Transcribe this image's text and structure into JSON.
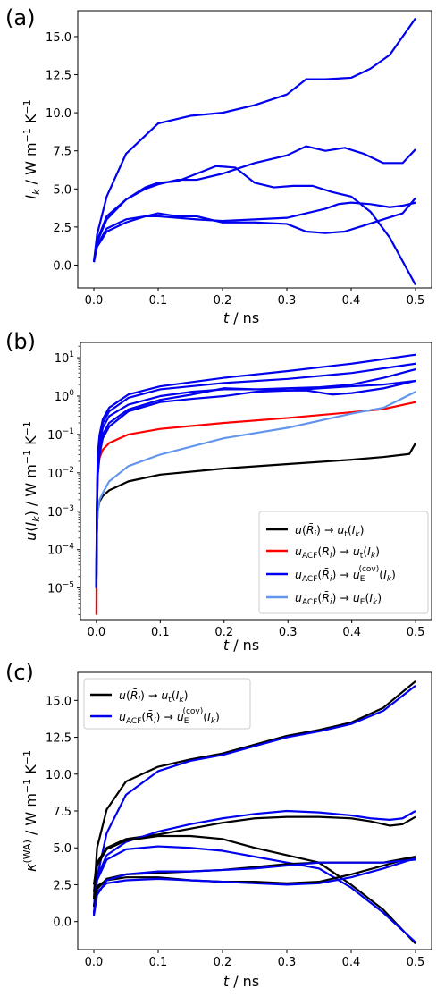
{
  "figure": {
    "panels": [
      {
        "letter": "(a)"
      },
      {
        "letter": "(b)"
      },
      {
        "letter": "(c)"
      }
    ]
  },
  "chart_data": [
    {
      "type": "line",
      "panel": "(a)",
      "xlabel": "t / ns",
      "ylabel": "I_k / W m^-1 K^-1",
      "xlim": [
        -0.025,
        0.525
      ],
      "ylim": [
        -1.5,
        16.7
      ],
      "xticks": [
        0.0,
        0.1,
        0.2,
        0.3,
        0.4,
        0.5
      ],
      "yticks": [
        0.0,
        2.5,
        5.0,
        7.5,
        10.0,
        12.5,
        15.0
      ],
      "xtick_labels": [
        "0.0",
        "0.1",
        "0.2",
        "0.3",
        "0.4",
        "0.5"
      ],
      "ytick_labels": [
        "0.0",
        "2.5",
        "5.0",
        "7.5",
        "10.0",
        "12.5",
        "15.0"
      ],
      "grid": false,
      "series": [
        {
          "color": "#0000ee",
          "x": [
            0,
            0.005,
            0.02,
            0.05,
            0.1,
            0.15,
            0.2,
            0.25,
            0.3,
            0.33,
            0.36,
            0.4,
            0.43,
            0.46,
            0.5
          ],
          "y": [
            0.2,
            2.0,
            4.5,
            7.3,
            9.3,
            9.8,
            10.0,
            10.5,
            11.2,
            12.2,
            12.2,
            12.3,
            12.9,
            13.8,
            16.2
          ]
        },
        {
          "color": "#0000ee",
          "x": [
            0,
            0.005,
            0.02,
            0.05,
            0.08,
            0.1,
            0.13,
            0.16,
            0.19,
            0.22,
            0.25,
            0.28,
            0.31,
            0.34,
            0.37,
            0.4,
            0.43,
            0.46,
            0.5
          ],
          "y": [
            0.2,
            1.6,
            3.2,
            4.3,
            5.1,
            5.4,
            5.5,
            6.0,
            6.5,
            6.4,
            5.4,
            5.1,
            5.2,
            5.2,
            4.8,
            4.5,
            3.5,
            1.8,
            -1.3
          ]
        },
        {
          "color": "#0000ee",
          "x": [
            0,
            0.005,
            0.02,
            0.05,
            0.08,
            0.1,
            0.13,
            0.16,
            0.2,
            0.25,
            0.3,
            0.33,
            0.36,
            0.39,
            0.42,
            0.45,
            0.48,
            0.5
          ],
          "y": [
            0.2,
            1.5,
            3.0,
            4.3,
            5.0,
            5.3,
            5.6,
            5.6,
            6.0,
            6.7,
            7.2,
            7.8,
            7.5,
            7.7,
            7.3,
            6.7,
            6.7,
            7.6
          ]
        },
        {
          "color": "#0000ee",
          "x": [
            0,
            0.005,
            0.02,
            0.05,
            0.08,
            0.1,
            0.13,
            0.16,
            0.2,
            0.25,
            0.3,
            0.33,
            0.36,
            0.39,
            0.42,
            0.45,
            0.48,
            0.5
          ],
          "y": [
            0.2,
            1.2,
            2.2,
            2.8,
            3.2,
            3.4,
            3.2,
            3.2,
            2.8,
            2.8,
            2.7,
            2.2,
            2.1,
            2.2,
            2.6,
            3.0,
            3.4,
            4.4
          ]
        },
        {
          "color": "#0000ee",
          "x": [
            0,
            0.005,
            0.02,
            0.05,
            0.08,
            0.1,
            0.13,
            0.16,
            0.2,
            0.25,
            0.3,
            0.33,
            0.36,
            0.38,
            0.4,
            0.43,
            0.46,
            0.48,
            0.5
          ],
          "y": [
            0.2,
            1.3,
            2.4,
            3.0,
            3.2,
            3.2,
            3.1,
            3.0,
            2.9,
            3.0,
            3.1,
            3.4,
            3.7,
            4.0,
            4.1,
            4.0,
            3.8,
            3.9,
            4.1
          ]
        }
      ]
    },
    {
      "type": "line",
      "panel": "(b)",
      "xlabel": "t / ns",
      "ylabel": "u(I_k) / W m^-1 K^-1",
      "yscale": "log",
      "xlim": [
        -0.025,
        0.525
      ],
      "ylim": [
        1.5e-06,
        25
      ],
      "xticks": [
        0.0,
        0.1,
        0.2,
        0.3,
        0.4,
        0.5
      ],
      "yticks": [
        1e-05,
        0.0001,
        0.001,
        0.01,
        0.1,
        1,
        10
      ],
      "xtick_labels": [
        "0.0",
        "0.1",
        "0.2",
        "0.3",
        "0.4",
        "0.5"
      ],
      "ytick_labels": [
        {
          "base": "10",
          "exp": "−5"
        },
        {
          "base": "10",
          "exp": "−4"
        },
        {
          "base": "10",
          "exp": "−3"
        },
        {
          "base": "10",
          "exp": "−2"
        },
        {
          "base": "10",
          "exp": "−1"
        },
        {
          "base": "10",
          "exp": "0"
        },
        {
          "base": "10",
          "exp": "1"
        }
      ],
      "grid": false,
      "legend": {
        "position": "lower-right",
        "entries": [
          {
            "color": "#000000",
            "text": "u(R̄ᵢ) → uₜ(Iₖ)"
          },
          {
            "color": "#ff0000",
            "text": "u_ACF(R̄ᵢ) → uₜ(Iₖ)"
          },
          {
            "color": "#0000ee",
            "text": "u_ACF(R̄ᵢ) → u_E^(cov)(Iₖ)"
          },
          {
            "color": "#6495ed",
            "text": "u_ACF(R̄ᵢ) → u_E(Iₖ)"
          }
        ]
      },
      "series": [
        {
          "color": "#000000",
          "x": [
            0.0,
            0.0005,
            0.002,
            0.005,
            0.01,
            0.02,
            0.05,
            0.1,
            0.2,
            0.3,
            0.4,
            0.45,
            0.49,
            0.5
          ],
          "y": [
            1e-05,
            0.0002,
            0.001,
            0.0018,
            0.0025,
            0.0035,
            0.006,
            0.009,
            0.013,
            0.017,
            0.022,
            0.026,
            0.031,
            0.06
          ]
        },
        {
          "color": "#ff0000",
          "x": [
            0.0,
            0.0005,
            0.002,
            0.005,
            0.01,
            0.02,
            0.05,
            0.1,
            0.2,
            0.3,
            0.4,
            0.45,
            0.5
          ],
          "y": [
            2e-06,
            0.0003,
            0.01,
            0.025,
            0.04,
            0.06,
            0.1,
            0.14,
            0.2,
            0.27,
            0.38,
            0.46,
            0.7
          ]
        },
        {
          "color": "#6495ed",
          "x": [
            0.0,
            0.0005,
            0.002,
            0.005,
            0.01,
            0.02,
            0.05,
            0.1,
            0.2,
            0.3,
            0.4,
            0.45,
            0.5
          ],
          "y": [
            1e-05,
            0.0002,
            0.001,
            0.002,
            0.003,
            0.006,
            0.015,
            0.03,
            0.08,
            0.15,
            0.35,
            0.5,
            1.3
          ]
        },
        {
          "color": "#0000ee",
          "x": [
            0.0,
            0.0005,
            0.002,
            0.005,
            0.01,
            0.02,
            0.05,
            0.1,
            0.2,
            0.3,
            0.4,
            0.5
          ],
          "y": [
            1e-05,
            0.001,
            0.03,
            0.1,
            0.25,
            0.5,
            1.1,
            1.8,
            3.0,
            4.5,
            7.0,
            12.0
          ]
        },
        {
          "color": "#0000ee",
          "x": [
            0.0,
            0.0005,
            0.002,
            0.005,
            0.01,
            0.02,
            0.05,
            0.1,
            0.2,
            0.3,
            0.4,
            0.5
          ],
          "y": [
            1e-05,
            0.0008,
            0.02,
            0.08,
            0.2,
            0.4,
            0.9,
            1.5,
            2.2,
            2.8,
            4.0,
            7.0
          ]
        },
        {
          "color": "#0000ee",
          "x": [
            0.0,
            0.0005,
            0.002,
            0.005,
            0.01,
            0.02,
            0.05,
            0.1,
            0.15,
            0.2,
            0.25,
            0.3,
            0.35,
            0.4,
            0.45,
            0.5
          ],
          "y": [
            1e-05,
            0.0006,
            0.015,
            0.06,
            0.15,
            0.3,
            0.6,
            1.0,
            1.3,
            1.5,
            1.5,
            1.6,
            1.7,
            2.0,
            3.0,
            5.0
          ]
        },
        {
          "color": "#0000ee",
          "x": [
            0.0,
            0.0005,
            0.002,
            0.005,
            0.01,
            0.02,
            0.05,
            0.1,
            0.15,
            0.2,
            0.25,
            0.3,
            0.33,
            0.37,
            0.4,
            0.45,
            0.5
          ],
          "y": [
            1e-05,
            0.0005,
            0.01,
            0.04,
            0.1,
            0.2,
            0.45,
            0.8,
            1.1,
            1.6,
            1.5,
            1.4,
            1.4,
            1.1,
            1.2,
            1.6,
            2.5
          ]
        },
        {
          "color": "#0000ee",
          "x": [
            0.0,
            0.0005,
            0.002,
            0.005,
            0.01,
            0.02,
            0.05,
            0.1,
            0.15,
            0.2,
            0.25,
            0.3,
            0.35,
            0.4,
            0.45,
            0.5
          ],
          "y": [
            1e-05,
            0.0004,
            0.008,
            0.03,
            0.08,
            0.16,
            0.4,
            0.7,
            0.85,
            1.0,
            1.3,
            1.4,
            1.6,
            1.8,
            2.0,
            2.5
          ]
        }
      ]
    },
    {
      "type": "line",
      "panel": "(c)",
      "xlabel": "t / ns",
      "ylabel": "κ^(WA) / W m^-1 K^-1",
      "xlim": [
        -0.025,
        0.525
      ],
      "ylim": [
        -1.9,
        16.9
      ],
      "xticks": [
        0.0,
        0.1,
        0.2,
        0.3,
        0.4,
        0.5
      ],
      "yticks": [
        0.0,
        2.5,
        5.0,
        7.5,
        10.0,
        12.5,
        15.0
      ],
      "xtick_labels": [
        "0.0",
        "0.1",
        "0.2",
        "0.3",
        "0.4",
        "0.5"
      ],
      "ytick_labels": [
        "0.0",
        "2.5",
        "5.0",
        "7.5",
        "10.0",
        "12.5",
        "15.0"
      ],
      "grid": false,
      "legend": {
        "position": "top-left",
        "entries": [
          {
            "color": "#000000",
            "text": "u(R̄ᵢ) → uₜ(Iₖ)"
          },
          {
            "color": "#0000ee",
            "text": "u_ACF(R̄ᵢ) → u_E^(cov)(Iₖ)"
          }
        ]
      },
      "series": [
        {
          "color": "#000000",
          "x": [
            0.0,
            0.005,
            0.02,
            0.05,
            0.1,
            0.15,
            0.2,
            0.25,
            0.3,
            0.35,
            0.4,
            0.45,
            0.5
          ],
          "y": [
            1.5,
            5.0,
            7.6,
            9.5,
            10.5,
            11.0,
            11.4,
            12.0,
            12.6,
            13.0,
            13.5,
            14.5,
            16.3
          ]
        },
        {
          "color": "#0000ee",
          "x": [
            0.0,
            0.005,
            0.02,
            0.05,
            0.1,
            0.15,
            0.2,
            0.25,
            0.3,
            0.35,
            0.4,
            0.45,
            0.5
          ],
          "y": [
            0.5,
            3.0,
            6.0,
            8.6,
            10.2,
            10.9,
            11.3,
            11.9,
            12.5,
            12.9,
            13.4,
            14.3,
            16.0
          ]
        },
        {
          "color": "#000000",
          "x": [
            0.0,
            0.005,
            0.02,
            0.05,
            0.1,
            0.15,
            0.2,
            0.25,
            0.3,
            0.35,
            0.4,
            0.43,
            0.46,
            0.48,
            0.5
          ],
          "y": [
            2.5,
            4.0,
            5.0,
            5.6,
            5.9,
            6.3,
            6.7,
            7.0,
            7.1,
            7.1,
            7.0,
            6.8,
            6.5,
            6.6,
            7.1
          ]
        },
        {
          "color": "#0000ee",
          "x": [
            0.0,
            0.005,
            0.02,
            0.05,
            0.1,
            0.15,
            0.2,
            0.25,
            0.3,
            0.35,
            0.4,
            0.43,
            0.46,
            0.48,
            0.5
          ],
          "y": [
            1.0,
            3.0,
            4.5,
            5.4,
            6.1,
            6.6,
            7.0,
            7.3,
            7.5,
            7.4,
            7.2,
            7.0,
            6.9,
            7.0,
            7.5
          ]
        },
        {
          "color": "#000000",
          "x": [
            0.0,
            0.005,
            0.02,
            0.05,
            0.1,
            0.15,
            0.2,
            0.25,
            0.3,
            0.35,
            0.4,
            0.45,
            0.5
          ],
          "y": [
            2.0,
            3.8,
            4.9,
            5.5,
            5.8,
            5.8,
            5.6,
            5.0,
            4.5,
            4.0,
            2.5,
            0.8,
            -1.5
          ]
        },
        {
          "color": "#0000ee",
          "x": [
            0.0,
            0.005,
            0.02,
            0.05,
            0.1,
            0.15,
            0.2,
            0.25,
            0.3,
            0.35,
            0.4,
            0.45,
            0.5
          ],
          "y": [
            1.0,
            2.8,
            4.2,
            4.9,
            5.1,
            5.0,
            4.8,
            4.4,
            4.0,
            3.6,
            2.3,
            0.6,
            -1.4
          ]
        },
        {
          "color": "#000000",
          "x": [
            0.0,
            0.005,
            0.02,
            0.05,
            0.1,
            0.15,
            0.2,
            0.25,
            0.3,
            0.35,
            0.4,
            0.45,
            0.5
          ],
          "y": [
            1.5,
            2.4,
            2.8,
            3.0,
            3.0,
            2.8,
            2.7,
            2.7,
            2.6,
            2.7,
            3.2,
            3.8,
            4.4
          ]
        },
        {
          "color": "#0000ee",
          "x": [
            0.0,
            0.005,
            0.02,
            0.05,
            0.1,
            0.15,
            0.2,
            0.25,
            0.3,
            0.35,
            0.4,
            0.45,
            0.5
          ],
          "y": [
            0.6,
            2.0,
            2.6,
            2.8,
            2.9,
            2.8,
            2.7,
            2.6,
            2.5,
            2.6,
            3.0,
            3.6,
            4.3
          ]
        },
        {
          "color": "#000000",
          "x": [
            0.0,
            0.005,
            0.02,
            0.05,
            0.1,
            0.15,
            0.2,
            0.25,
            0.3,
            0.35,
            0.4,
            0.45,
            0.5
          ],
          "y": [
            1.0,
            2.2,
            2.9,
            3.2,
            3.3,
            3.4,
            3.5,
            3.7,
            3.9,
            4.0,
            4.0,
            4.0,
            4.4
          ]
        },
        {
          "color": "#0000ee",
          "x": [
            0.0,
            0.005,
            0.02,
            0.05,
            0.1,
            0.15,
            0.2,
            0.25,
            0.3,
            0.35,
            0.4,
            0.45,
            0.5
          ],
          "y": [
            0.4,
            1.8,
            2.8,
            3.2,
            3.4,
            3.4,
            3.5,
            3.6,
            3.8,
            4.0,
            4.0,
            4.0,
            4.2
          ]
        }
      ]
    }
  ]
}
